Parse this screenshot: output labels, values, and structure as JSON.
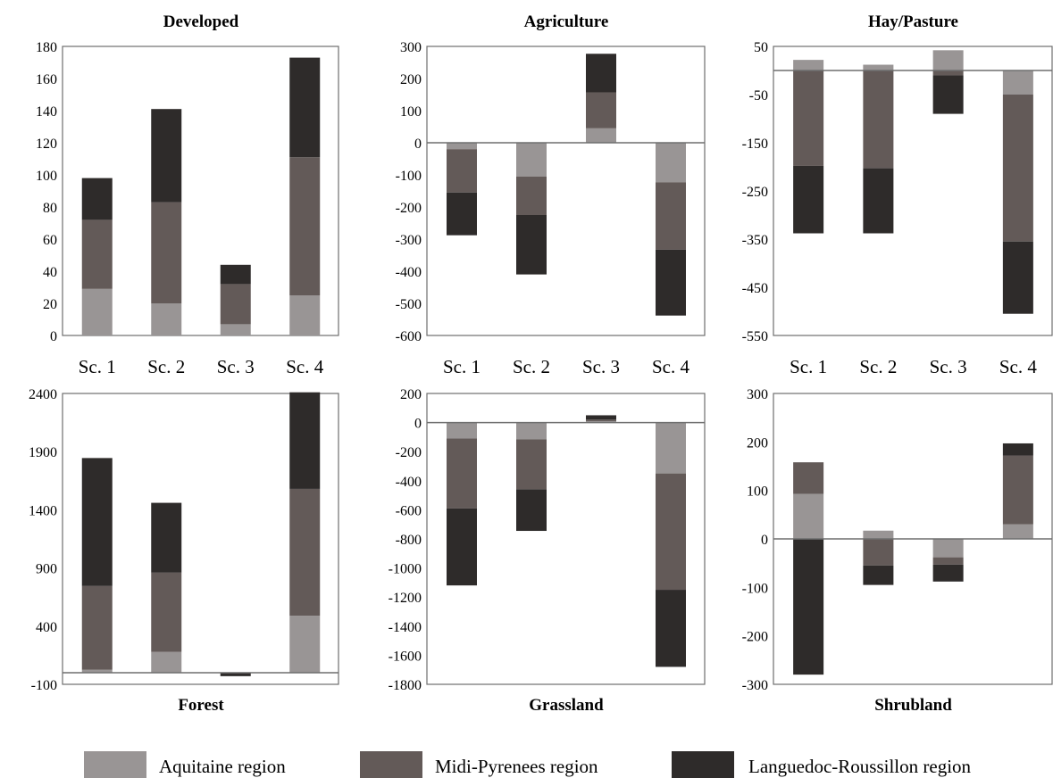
{
  "series": [
    {
      "name": "Aquitaine region",
      "color": "#999595"
    },
    {
      "name": "Midi-Pyrenees region",
      "color": "#635a58"
    },
    {
      "name": "Languedoc-Roussillon region",
      "color": "#2e2b2a"
    }
  ],
  "chart_data": [
    {
      "type": "bar",
      "stacked": true,
      "title": "Developed",
      "categories": [
        "Sc. 1",
        "Sc. 2",
        "Sc. 3",
        "Sc. 4"
      ],
      "yticks": [
        0,
        20,
        40,
        60,
        80,
        100,
        120,
        140,
        160,
        180
      ],
      "ylim": [
        0,
        180
      ],
      "series": [
        {
          "name": "Aquitaine region",
          "values": [
            29,
            20,
            7,
            25
          ]
        },
        {
          "name": "Midi-Pyrenees region",
          "values": [
            43,
            63,
            25,
            86
          ]
        },
        {
          "name": "Languedoc-Roussillon region",
          "values": [
            26,
            58,
            12,
            62
          ]
        }
      ]
    },
    {
      "type": "bar",
      "stacked": true,
      "title": "Agriculture",
      "categories": [
        "Sc. 1",
        "Sc. 2",
        "Sc. 3",
        "Sc. 4"
      ],
      "yticks": [
        -600,
        -500,
        -400,
        -300,
        -200,
        -100,
        0,
        100,
        200,
        300
      ],
      "ylim": [
        -600,
        300
      ],
      "series": [
        {
          "name": "Aquitaine region",
          "values": [
            -20,
            -105,
            45,
            -123
          ]
        },
        {
          "name": "Midi-Pyrenees region",
          "values": [
            -135,
            -120,
            112,
            -210
          ]
        },
        {
          "name": "Languedoc-Roussillon region",
          "values": [
            -133,
            -185,
            120,
            -205
          ]
        }
      ]
    },
    {
      "type": "bar",
      "stacked": true,
      "title": "Hay/Pasture",
      "categories": [
        "Sc. 1",
        "Sc. 2",
        "Sc. 3",
        "Sc. 4"
      ],
      "yticks": [
        -550,
        -450,
        -350,
        -250,
        -150,
        -50,
        50
      ],
      "ylim": [
        -550,
        50
      ],
      "series": [
        {
          "name": "Aquitaine region",
          "values": [
            22,
            12,
            42,
            -50
          ]
        },
        {
          "name": "Midi-Pyrenees region",
          "values": [
            -198,
            -203,
            -10,
            -305
          ]
        },
        {
          "name": "Languedoc-Roussillon region",
          "values": [
            -140,
            -135,
            -80,
            -150
          ]
        }
      ]
    },
    {
      "type": "bar",
      "stacked": true,
      "title": "Forest",
      "categories": [
        "Sc. 1",
        "Sc. 2",
        "Sc. 3",
        "Sc. 4"
      ],
      "yticks": [
        -100,
        400,
        900,
        1400,
        1900,
        2400
      ],
      "ylim": [
        -100,
        2400
      ],
      "series": [
        {
          "name": "Aquitaine region",
          "values": [
            25,
            180,
            0,
            490
          ]
        },
        {
          "name": "Midi-Pyrenees region",
          "values": [
            720,
            680,
            0,
            1090
          ]
        },
        {
          "name": "Languedoc-Roussillon region",
          "values": [
            1100,
            600,
            -30,
            830
          ]
        }
      ]
    },
    {
      "type": "bar",
      "stacked": true,
      "title": "Grassland",
      "categories": [
        "Sc. 1",
        "Sc. 2",
        "Sc. 3",
        "Sc. 4"
      ],
      "yticks": [
        -1800,
        -1600,
        -1400,
        -1200,
        -1000,
        -800,
        -600,
        -400,
        -200,
        0,
        200
      ],
      "ylim": [
        -1800,
        200
      ],
      "series": [
        {
          "name": "Aquitaine region",
          "values": [
            -110,
            -115,
            10,
            -350
          ]
        },
        {
          "name": "Midi-Pyrenees region",
          "values": [
            -480,
            -345,
            10,
            -800
          ]
        },
        {
          "name": "Languedoc-Roussillon region",
          "values": [
            -530,
            -285,
            30,
            -530
          ]
        }
      ]
    },
    {
      "type": "bar",
      "stacked": true,
      "title": "Shrubland",
      "categories": [
        "Sc. 1",
        "Sc. 2",
        "Sc. 3",
        "Sc. 4"
      ],
      "yticks": [
        -300,
        -200,
        -100,
        0,
        100,
        200,
        300
      ],
      "ylim": [
        -300,
        300
      ],
      "series": [
        {
          "name": "Aquitaine region",
          "values": [
            93,
            17,
            -38,
            30
          ]
        },
        {
          "name": "Midi-Pyrenees region",
          "values": [
            65,
            -55,
            -15,
            142
          ]
        },
        {
          "name": "Languedoc-Roussillon region",
          "values": [
            -280,
            -40,
            -35,
            25
          ]
        }
      ]
    }
  ]
}
